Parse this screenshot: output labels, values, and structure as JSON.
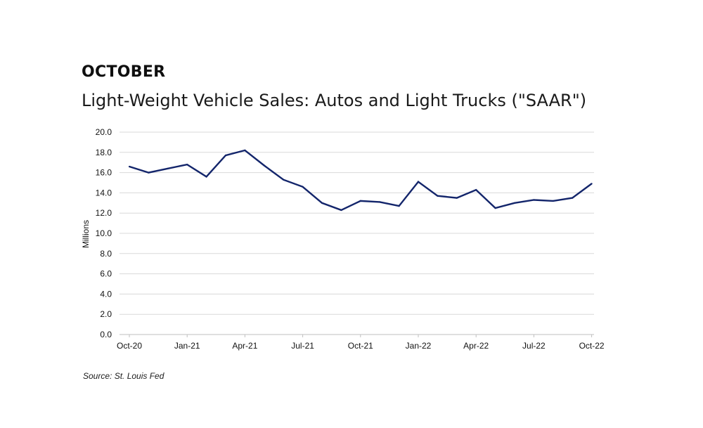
{
  "header": {
    "eyebrow": "OCTOBER",
    "title": "Light-Weight Vehicle Sales: Autos and Light Trucks (\"SAAR\")"
  },
  "source": "Source: St. Louis Fed",
  "colors": {
    "line": "#13256b",
    "grid": "#d9d9d9",
    "axis": "#bfbfbf"
  },
  "chart_data": {
    "type": "line",
    "title": "Light-Weight Vehicle Sales: Autos and Light Trucks (\"SAAR\")",
    "xlabel": "",
    "ylabel": "Millions",
    "ylim": [
      0,
      20
    ],
    "yticks": [
      "0.0",
      "2.0",
      "4.0",
      "6.0",
      "8.0",
      "10.0",
      "12.0",
      "14.0",
      "16.0",
      "18.0",
      "20.0"
    ],
    "xtick_labels": [
      "Oct-20",
      "Jan-21",
      "Apr-21",
      "Jul-21",
      "Oct-21",
      "Jan-22",
      "Apr-22",
      "Jul-22",
      "Oct-22"
    ],
    "xtick_every": 3,
    "grid": true,
    "legend": "none",
    "series": [
      {
        "name": "Light-Weight Vehicle Sales (SAAR)",
        "x": [
          "Oct-20",
          "Nov-20",
          "Dec-20",
          "Jan-21",
          "Feb-21",
          "Mar-21",
          "Apr-21",
          "May-21",
          "Jun-21",
          "Jul-21",
          "Aug-21",
          "Sep-21",
          "Oct-21",
          "Nov-21",
          "Dec-21",
          "Jan-22",
          "Feb-22",
          "Mar-22",
          "Apr-22",
          "May-22",
          "Jun-22",
          "Jul-22",
          "Aug-22",
          "Sep-22",
          "Oct-22"
        ],
        "values": [
          16.6,
          16.0,
          16.4,
          16.8,
          15.6,
          17.7,
          18.2,
          16.7,
          15.3,
          14.6,
          13.0,
          12.3,
          13.2,
          13.1,
          12.7,
          15.1,
          13.7,
          13.5,
          14.3,
          12.5,
          13.0,
          13.3,
          13.2,
          13.5,
          14.9
        ]
      }
    ]
  }
}
